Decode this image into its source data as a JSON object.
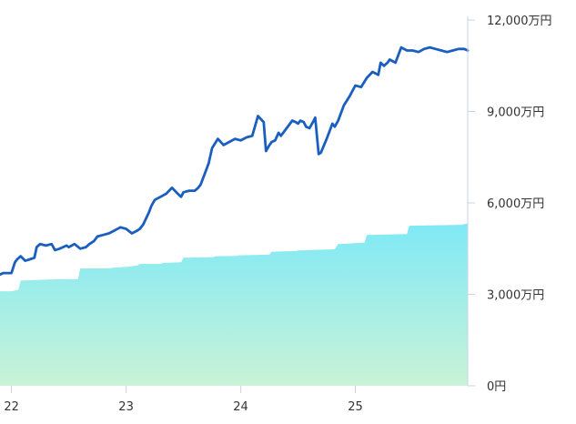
{
  "chart_data": {
    "type": "area",
    "title": "",
    "xlabel": "",
    "ylabel": "",
    "ylim": [
      0,
      12000
    ],
    "xlim": [
      21.9,
      25.98
    ],
    "y_ticks": [
      0,
      3000,
      6000,
      9000,
      12000
    ],
    "y_tick_labels": [
      "0円",
      "3,000万円",
      "6,000万円",
      "9,000万円",
      "12,000万円"
    ],
    "x_ticks": [
      22,
      23,
      24,
      25
    ],
    "x_tick_labels": [
      "22",
      "23",
      "24",
      "25"
    ],
    "grid": false,
    "legend": "none",
    "colors": {
      "line": "#1a5fbf",
      "area_top": "#7fe9f6",
      "area_bottom": "#c9f3d7",
      "axis": "#c9d3e6"
    },
    "series": [
      {
        "kind": "area",
        "x": [
          21.9,
          22.0,
          22.06,
          22.08,
          22.43,
          22.45,
          22.58,
          22.6,
          22.85,
          22.88,
          22.98,
          23.0,
          23.1,
          23.12,
          23.3,
          23.32,
          23.48,
          23.5,
          23.76,
          23.78,
          23.96,
          23.98,
          24.25,
          24.27,
          24.48,
          24.5,
          24.82,
          24.85,
          24.96,
          24.98,
          25.08,
          25.1,
          25.45,
          25.47,
          25.92,
          25.94,
          25.98
        ],
        "y": [
          3100,
          3100,
          3150,
          3450,
          3500,
          3500,
          3500,
          3850,
          3850,
          3870,
          3900,
          3900,
          3950,
          4000,
          4000,
          4030,
          4050,
          4200,
          4220,
          4250,
          4260,
          4280,
          4300,
          4400,
          4420,
          4440,
          4480,
          4650,
          4670,
          4680,
          4700,
          4950,
          4980,
          5250,
          5280,
          5300,
          5320
        ]
      },
      {
        "kind": "line",
        "x": [
          21.9,
          21.93,
          22.0,
          22.03,
          22.05,
          22.08,
          22.12,
          22.16,
          22.2,
          22.22,
          22.25,
          22.3,
          22.35,
          22.38,
          22.42,
          22.45,
          22.48,
          22.5,
          22.55,
          22.6,
          22.65,
          22.68,
          22.72,
          22.75,
          22.8,
          22.85,
          22.9,
          22.95,
          23.0,
          23.05,
          23.1,
          23.12,
          23.15,
          23.2,
          23.22,
          23.25,
          23.3,
          23.35,
          23.4,
          23.45,
          23.48,
          23.5,
          23.55,
          23.6,
          23.63,
          23.65,
          23.7,
          23.72,
          23.75,
          23.8,
          23.85,
          23.9,
          23.95,
          24.0,
          24.05,
          24.1,
          24.15,
          24.2,
          24.22,
          24.25,
          24.27,
          24.3,
          24.33,
          24.35,
          24.4,
          24.45,
          24.48,
          24.5,
          24.52,
          24.55,
          24.57,
          24.6,
          24.63,
          24.65,
          24.68,
          24.7,
          24.75,
          24.8,
          24.82,
          24.85,
          24.9,
          24.95,
          25.0,
          25.05,
          25.1,
          25.15,
          25.2,
          25.22,
          25.25,
          25.28,
          25.3,
          25.35,
          25.4,
          25.45,
          25.5,
          25.55,
          25.6,
          25.65,
          25.7,
          25.75,
          25.8,
          25.85,
          25.9,
          25.95,
          25.98
        ],
        "y": [
          3650,
          3700,
          3700,
          4050,
          4150,
          4250,
          4100,
          4150,
          4200,
          4550,
          4650,
          4600,
          4650,
          4450,
          4500,
          4550,
          4600,
          4550,
          4650,
          4500,
          4550,
          4650,
          4750,
          4900,
          4950,
          5000,
          5100,
          5200,
          5150,
          5000,
          5100,
          5150,
          5300,
          5700,
          5900,
          6100,
          6200,
          6300,
          6500,
          6300,
          6200,
          6350,
          6400,
          6400,
          6500,
          6600,
          7100,
          7300,
          7800,
          8100,
          7900,
          8000,
          8100,
          8050,
          8150,
          8200,
          8850,
          8650,
          7700,
          7900,
          8000,
          8050,
          8300,
          8200,
          8450,
          8700,
          8650,
          8600,
          8700,
          8650,
          8500,
          8450,
          8650,
          8800,
          7600,
          7650,
          8100,
          8600,
          8500,
          8700,
          9200,
          9500,
          9850,
          9800,
          10100,
          10300,
          10200,
          10600,
          10500,
          10600,
          10700,
          10600,
          11100,
          11000,
          11000,
          10950,
          11050,
          11100,
          11050,
          11000,
          10950,
          11000,
          11050,
          11050,
          11000
        ]
      }
    ]
  }
}
